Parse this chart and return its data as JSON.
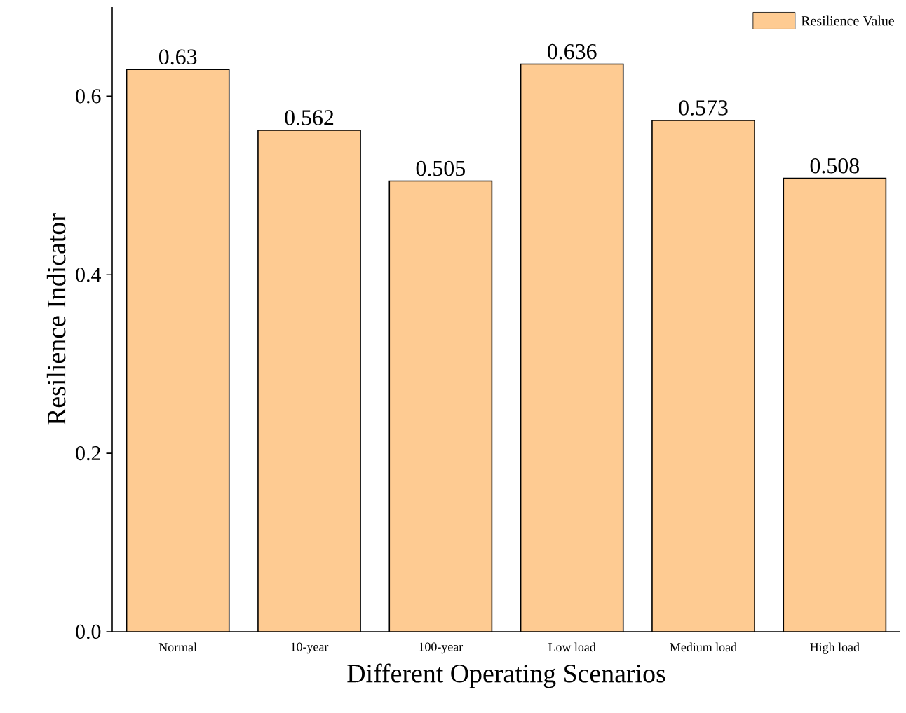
{
  "chart_data": {
    "type": "bar",
    "xlabel": "Different Operating Scenarios",
    "ylabel": "Resilience Indicator",
    "categories": [
      "Normal",
      "10-year",
      "100-year",
      "Low load",
      "Medium load",
      "High load"
    ],
    "series": [
      {
        "name": "Resilience Value",
        "color": "#fecb92",
        "values": [
          0.63,
          0.562,
          0.505,
          0.636,
          0.573,
          0.508
        ]
      }
    ],
    "ylim": [
      0,
      0.7
    ],
    "yticks": [
      {
        "value": 0,
        "label": "0.0"
      },
      {
        "value": 0.2,
        "label": "0.2"
      },
      {
        "value": 0.4,
        "label": "0.4"
      },
      {
        "value": 0.6,
        "label": "0.6"
      }
    ],
    "data_labels": true,
    "legend": "top right",
    "grid": false
  }
}
